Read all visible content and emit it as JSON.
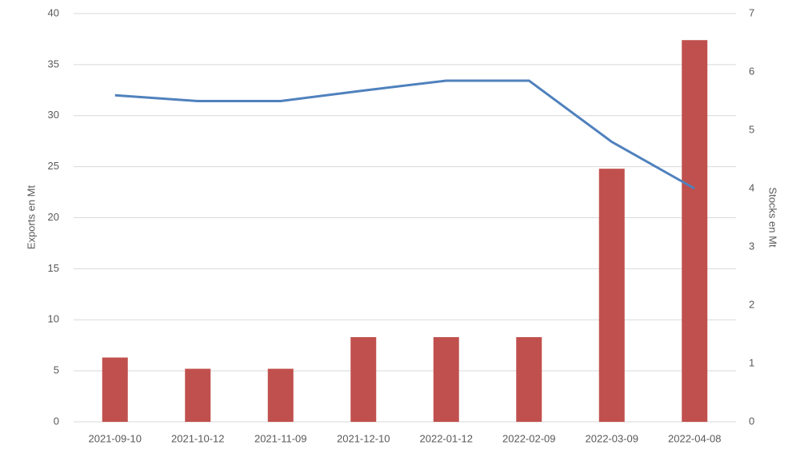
{
  "chart_data": {
    "type": "combo",
    "categories": [
      "2021-09-10",
      "2021-10-12",
      "2021-11-09",
      "2021-12-10",
      "2022-01-12",
      "2022-02-09",
      "2022-03-09",
      "2022-04-08"
    ],
    "series": [
      {
        "type": "bar",
        "color": "#c0504d",
        "values": [
          6.3,
          5.2,
          5.2,
          8.3,
          8.3,
          8.3,
          24.8,
          37.4
        ]
      },
      {
        "type": "line",
        "axis": "y2",
        "color": "#4f81bd",
        "values": [
          5.6,
          5.5,
          5.5,
          5.68,
          5.85,
          5.85,
          4.8,
          4.0
        ]
      }
    ],
    "y_label": "Exports en Mt",
    "y2_label": "Stocks en Mt",
    "ylim": [
      0,
      40
    ],
    "yticks": [
      0,
      5,
      10,
      15,
      20,
      25,
      30,
      35,
      40
    ],
    "y2lim": [
      0,
      7
    ],
    "y2ticks": [
      0,
      1,
      2,
      3,
      4,
      5,
      6,
      7
    ],
    "grid": true
  }
}
